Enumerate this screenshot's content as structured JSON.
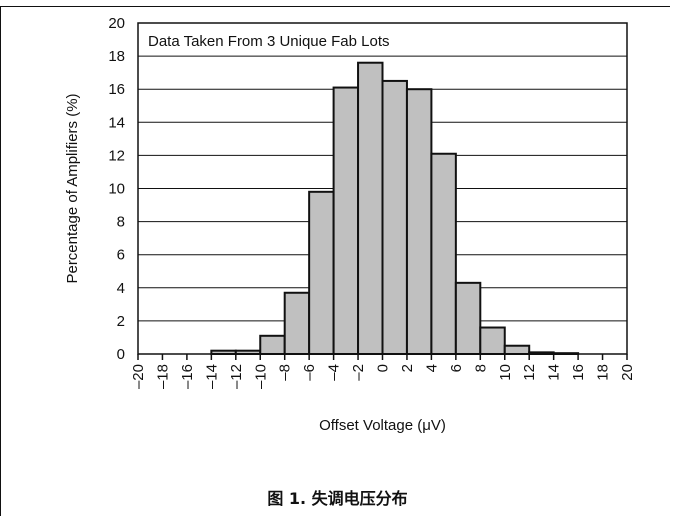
{
  "chart_data": {
    "type": "bar",
    "title": "",
    "annotation": "Data Taken From 3 Unique Fab Lots",
    "xlabel": "Offset Voltage (μV)",
    "ylabel": "Percentage of Amplifiers (%)",
    "xlim": [
      -20,
      20
    ],
    "ylim": [
      0,
      20
    ],
    "x_ticks": [
      -20,
      -18,
      -16,
      -14,
      -12,
      -10,
      -8,
      -6,
      -4,
      -2,
      0,
      2,
      4,
      6,
      8,
      10,
      12,
      14,
      16,
      18,
      20
    ],
    "x_tick_labels": [
      "–20",
      "–18",
      "–16",
      "–14",
      "–12",
      "–10",
      "–8",
      "–6",
      "–4",
      "–2",
      "0",
      "2",
      "4",
      "6",
      "8",
      "10",
      "12",
      "14",
      "16",
      "18",
      "20"
    ],
    "y_ticks": [
      0,
      2,
      4,
      6,
      8,
      10,
      12,
      14,
      16,
      18,
      20
    ],
    "bin_width": 2,
    "bins": [
      {
        "x0": -14,
        "x1": -12,
        "value": 0.2
      },
      {
        "x0": -12,
        "x1": -10,
        "value": 0.2
      },
      {
        "x0": -10,
        "x1": -8,
        "value": 1.1
      },
      {
        "x0": -8,
        "x1": -6,
        "value": 3.7
      },
      {
        "x0": -6,
        "x1": -4,
        "value": 9.8
      },
      {
        "x0": -4,
        "x1": -2,
        "value": 16.1
      },
      {
        "x0": -2,
        "x1": 0,
        "value": 17.6
      },
      {
        "x0": 0,
        "x1": 2,
        "value": 16.5
      },
      {
        "x0": 2,
        "x1": 4,
        "value": 16.0
      },
      {
        "x0": 4,
        "x1": 6,
        "value": 12.1
      },
      {
        "x0": 6,
        "x1": 8,
        "value": 4.3
      },
      {
        "x0": 8,
        "x1": 10,
        "value": 1.6
      },
      {
        "x0": 10,
        "x1": 12,
        "value": 0.5
      },
      {
        "x0": 12,
        "x1": 14,
        "value": 0.1
      },
      {
        "x0": 14,
        "x1": 16,
        "value": 0.05
      }
    ],
    "grid": "horizontal",
    "bar_fill": "#c0c0c0",
    "bar_stroke": "#111111"
  },
  "caption": "图 1. 失调电压分布"
}
